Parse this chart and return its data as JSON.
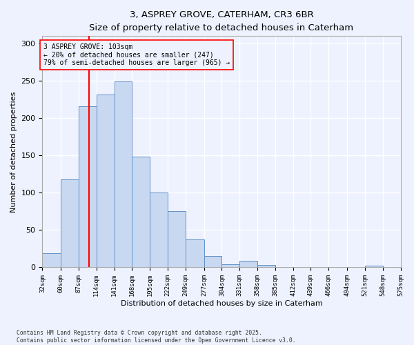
{
  "title_line1": "3, ASPREY GROVE, CATERHAM, CR3 6BR",
  "title_line2": "Size of property relative to detached houses in Caterham",
  "xlabel": "Distribution of detached houses by size in Caterham",
  "ylabel": "Number of detached properties",
  "bin_edges": [
    32,
    60,
    87,
    114,
    141,
    168,
    195,
    222,
    249,
    277,
    304,
    331,
    358,
    385,
    412,
    439,
    466,
    494,
    521,
    548,
    575
  ],
  "counts": [
    19,
    118,
    216,
    232,
    249,
    148,
    100,
    75,
    37,
    15,
    4,
    9,
    3,
    0,
    0,
    0,
    0,
    0,
    2,
    0
  ],
  "tick_labels": [
    "32sqm",
    "60sqm",
    "87sqm",
    "114sqm",
    "141sqm",
    "168sqm",
    "195sqm",
    "222sqm",
    "249sqm",
    "277sqm",
    "304sqm",
    "331sqm",
    "358sqm",
    "385sqm",
    "412sqm",
    "439sqm",
    "466sqm",
    "494sqm",
    "521sqm",
    "548sqm",
    "575sqm"
  ],
  "property_size": 103,
  "property_label": "3 ASPREY GROVE: 103sqm",
  "annotation_line2": "← 20% of detached houses are smaller (247)",
  "annotation_line3": "79% of semi-detached houses are larger (965) →",
  "vline_x": 103,
  "bar_color": "#c8d8f0",
  "bar_edge_color": "#6090c8",
  "vline_color": "red",
  "annotation_box_edge": "red",
  "background_color": "#eef2ff",
  "grid_color": "#ffffff",
  "ylim": [
    0,
    310
  ],
  "yticks": [
    0,
    50,
    100,
    150,
    200,
    250,
    300
  ],
  "footer_line1": "Contains HM Land Registry data © Crown copyright and database right 2025.",
  "footer_line2": "Contains public sector information licensed under the Open Government Licence v3.0."
}
